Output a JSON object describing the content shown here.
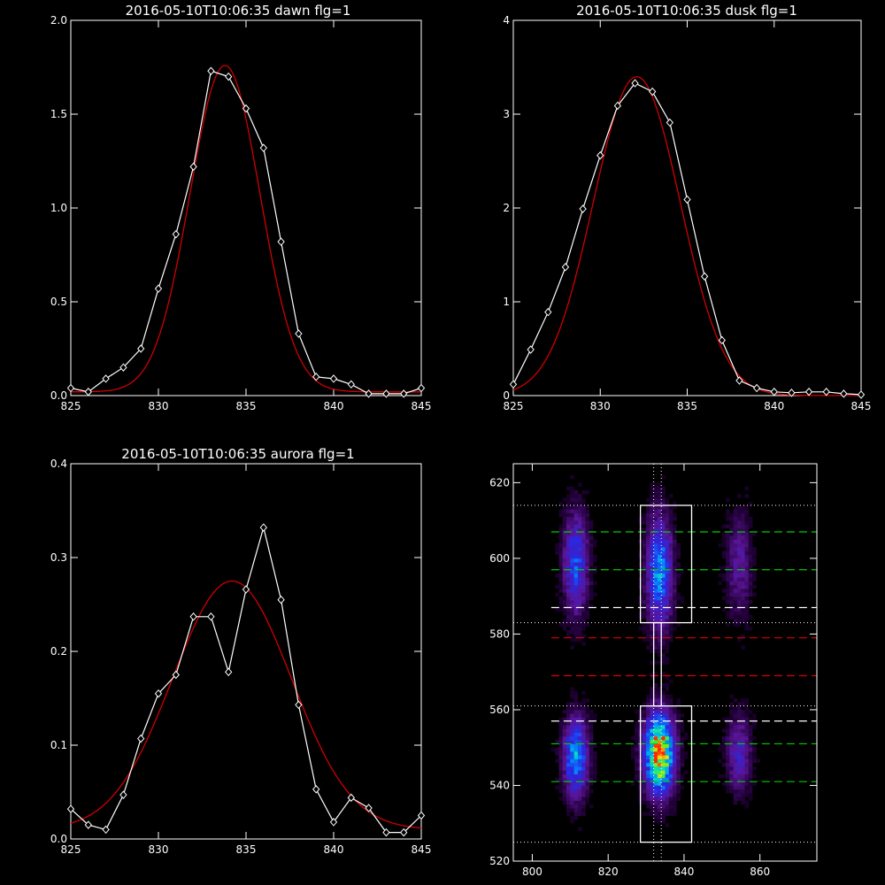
{
  "chart_data": [
    {
      "type": "line",
      "title": "2016-05-10T10:06:35 dawn flg=1",
      "xlim": [
        825,
        845
      ],
      "ylim": [
        0,
        2.0
      ],
      "xticks": [
        "825",
        "830",
        "835",
        "840",
        "845"
      ],
      "yticks": [
        "0.0",
        "0.5",
        "1.0",
        "1.5",
        "2.0"
      ],
      "series": [
        {
          "style": "measured",
          "color": "#ffffff",
          "x": [
            825,
            826,
            827,
            828,
            829,
            830,
            831,
            832,
            833,
            834,
            835,
            836,
            837,
            838,
            839,
            840,
            841,
            842,
            843,
            844,
            845
          ],
          "y": [
            0.04,
            0.02,
            0.09,
            0.15,
            0.25,
            0.57,
            0.86,
            1.22,
            1.73,
            1.7,
            1.53,
            1.32,
            0.82,
            0.33,
            0.1,
            0.09,
            0.06,
            0.01,
            0.01,
            0.01,
            0.04
          ]
        },
        {
          "style": "fit",
          "color": "#d00000",
          "gauss": {
            "amp": 1.74,
            "center": 833.8,
            "sigma": 2.0,
            "offset": 0.02
          }
        }
      ]
    },
    {
      "type": "line",
      "title": "2016-05-10T10:06:35 dusk flg=1",
      "xlim": [
        825,
        845
      ],
      "ylim": [
        0,
        4
      ],
      "xticks": [
        "825",
        "830",
        "835",
        "840",
        "845"
      ],
      "yticks": [
        "0",
        "1",
        "2",
        "3",
        "4"
      ],
      "series": [
        {
          "style": "measured",
          "color": "#ffffff",
          "x": [
            825,
            826,
            827,
            828,
            829,
            830,
            831,
            832,
            833,
            834,
            835,
            836,
            837,
            838,
            839,
            840,
            841,
            842,
            843,
            844,
            845
          ],
          "y": [
            0.12,
            0.49,
            0.89,
            1.37,
            1.99,
            2.56,
            3.09,
            3.33,
            3.24,
            2.91,
            2.09,
            1.27,
            0.59,
            0.16,
            0.08,
            0.04,
            0.03,
            0.04,
            0.04,
            0.02,
            0.01
          ]
        },
        {
          "style": "fit",
          "color": "#d00000",
          "gauss": {
            "amp": 3.4,
            "center": 832.1,
            "sigma": 2.5,
            "offset": 0.0
          }
        }
      ]
    },
    {
      "type": "line",
      "title": "2016-05-10T10:06:35 aurora flg=1",
      "xlim": [
        825,
        845
      ],
      "ylim": [
        0,
        0.4
      ],
      "xticks": [
        "825",
        "830",
        "835",
        "840",
        "845"
      ],
      "yticks": [
        "0.0",
        "0.1",
        "0.2",
        "0.3",
        "0.4"
      ],
      "series": [
        {
          "style": "measured",
          "color": "#ffffff",
          "x": [
            825,
            826,
            827,
            828,
            829,
            830,
            831,
            832,
            833,
            834,
            835,
            836,
            837,
            838,
            839,
            840,
            841,
            842,
            843,
            844,
            845
          ],
          "y": [
            0.032,
            0.015,
            0.01,
            0.047,
            0.107,
            0.155,
            0.175,
            0.237,
            0.237,
            0.178,
            0.266,
            0.332,
            0.255,
            0.143,
            0.053,
            0.018,
            0.044,
            0.033,
            0.007,
            0.007,
            0.025
          ]
        },
        {
          "style": "fit",
          "color": "#d00000",
          "gauss": {
            "amp": 0.265,
            "center": 834.2,
            "sigma": 3.4,
            "offset": 0.01
          }
        }
      ]
    },
    {
      "type": "heatmap",
      "xlim": [
        795,
        875
      ],
      "ylim": [
        520,
        625
      ],
      "xticks": [
        "800",
        "820",
        "840",
        "860"
      ],
      "yticks": [
        "520",
        "540",
        "560",
        "580",
        "600",
        "620"
      ],
      "blobs": [
        {
          "cx": 811,
          "cy": 547,
          "sx": 2.2,
          "sy": 7,
          "amp": 0.55
        },
        {
          "cx": 811,
          "cy": 598,
          "sx": 2.2,
          "sy": 9,
          "amp": 0.42
        },
        {
          "cx": 833,
          "cy": 548,
          "sx": 2.6,
          "sy": 7,
          "amp": 1.0
        },
        {
          "cx": 833,
          "cy": 596,
          "sx": 2.3,
          "sy": 10,
          "amp": 0.52
        },
        {
          "cx": 854,
          "cy": 548,
          "sx": 2.2,
          "sy": 7,
          "amp": 0.28
        },
        {
          "cx": 854,
          "cy": 598,
          "sx": 2.2,
          "sy": 9,
          "amp": 0.22
        }
      ],
      "boxes": [
        {
          "x0": 828.5,
          "x1": 842,
          "y0": 583,
          "y1": 614
        },
        {
          "x0": 828.5,
          "x1": 842,
          "y0": 525,
          "y1": 561
        },
        {
          "x0": 832,
          "x1": 834,
          "y0": 561,
          "y1": 583
        }
      ],
      "dotted_h": [
        614,
        583,
        561,
        525
      ],
      "dotted_v": [
        832,
        834
      ],
      "green_dashed": [
        607,
        597,
        551,
        541
      ],
      "white_dashed": [
        587,
        557
      ],
      "red_dashed": [
        579,
        569
      ],
      "dashed_xrange": [
        805,
        875
      ]
    }
  ]
}
